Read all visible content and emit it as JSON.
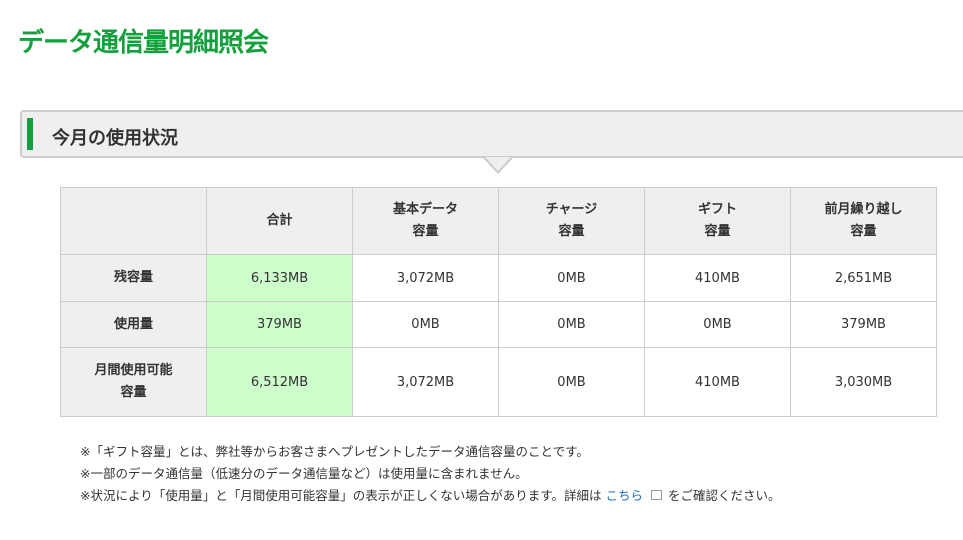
{
  "page_title": "データ通信量明細照会",
  "section_title": "今月の使用状況",
  "accent_color": "#14a03c",
  "table": {
    "columns": [
      [
        "合計"
      ],
      [
        "基本データ",
        "容量"
      ],
      [
        "チャージ",
        "容量"
      ],
      [
        "ギフト",
        "容量"
      ],
      [
        "前月繰り越し",
        "容量"
      ]
    ],
    "rows": [
      {
        "label": [
          "残容量"
        ],
        "values": [
          "6,133MB",
          "3,072MB",
          "0MB",
          "410MB",
          "2,651MB"
        ]
      },
      {
        "label": [
          "使用量"
        ],
        "values": [
          "379MB",
          "0MB",
          "0MB",
          "0MB",
          "379MB"
        ]
      },
      {
        "label": [
          "月間使用可能",
          "容量"
        ],
        "values": [
          "6,512MB",
          "3,072MB",
          "0MB",
          "410MB",
          "3,030MB"
        ]
      }
    ]
  },
  "notes": {
    "n1": "※「ギフト容量」とは、弊社等からお客さまへプレゼントしたデータ通信容量のことです。",
    "n2": "※一部のデータ通信量（低速分のデータ通信量など）は使用量に含まれません。",
    "n3_pre": "※状況により「使用量」と「月間使用可能容量」の表示が正しくない場合があります。詳細は ",
    "n3_link": "こちら",
    "n3_post": "をご確認ください。",
    "link_icon": "external-window-icon"
  }
}
